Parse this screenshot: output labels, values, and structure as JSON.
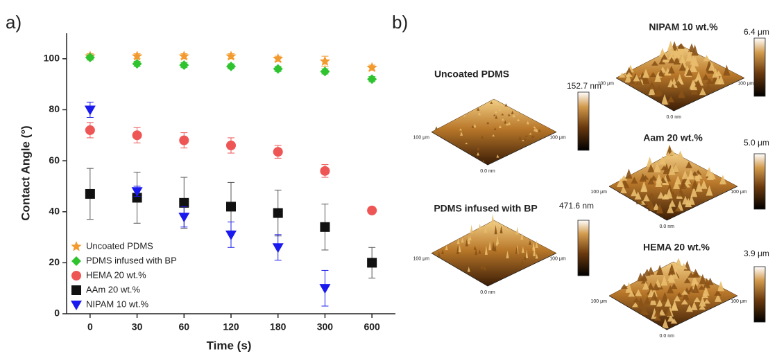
{
  "chart_data": {
    "type": "scatter",
    "panel_label": "a)",
    "x_label": "Time (s)",
    "y_label": "Contact Angle (°)",
    "categories": [
      "0",
      "30",
      "60",
      "120",
      "180",
      "300",
      "600"
    ],
    "ylim": [
      0,
      110
    ],
    "yticks": [
      0,
      20,
      40,
      60,
      80,
      100
    ],
    "legend": "lower left",
    "series": [
      {
        "name": "Uncoated PDMS",
        "color": "#f39a2e",
        "marker": "star",
        "values": [
          101,
          101,
          101,
          101,
          100,
          99,
          96.5
        ],
        "errors": [
          1,
          1,
          1,
          1,
          1,
          2,
          1
        ]
      },
      {
        "name": "PDMS infused with BP",
        "color": "#2fc42f",
        "marker": "diamond",
        "values": [
          100.5,
          98,
          97.5,
          97,
          96,
          95,
          92
        ],
        "errors": [
          1,
          1,
          1,
          1,
          1,
          1,
          1
        ]
      },
      {
        "name": "HEMA 20 wt.%",
        "color": "#ee5555",
        "marker": "circle",
        "values": [
          72,
          70,
          68,
          66,
          63.5,
          56,
          40.5
        ],
        "errors": [
          3,
          3,
          3,
          3,
          2.5,
          2.5,
          1
        ]
      },
      {
        "name": "AAm 20 wt.%",
        "color": "#111111",
        "marker": "square",
        "values": [
          47,
          45.5,
          43.5,
          42,
          39.5,
          34,
          20
        ],
        "errors": [
          10,
          10,
          10,
          9.5,
          9,
          9,
          6
        ]
      },
      {
        "name": "NIPAM 10 wt.%",
        "color": "#1a1aee",
        "marker": "triangle-down",
        "values": [
          80,
          48,
          38,
          31,
          26,
          10,
          null
        ],
        "errors": [
          3,
          2,
          4,
          5,
          5,
          7,
          null
        ]
      }
    ]
  },
  "afm_panel": {
    "label": "b)",
    "images": [
      {
        "title": "Uncoated PDMS",
        "scale": "152.7 nm",
        "axis_labels": [
          "100 μm",
          "100 μm",
          "0.0 nm"
        ]
      },
      {
        "title": "PDMS infused with BP",
        "scale": "471.6 nm",
        "axis_labels": [
          "100 μm",
          "100 μm",
          "0.0 nm"
        ]
      },
      {
        "title": "NIPAM 10 wt.%",
        "scale": "6.4 μm",
        "axis_labels": [
          "100 μm",
          "100 μm",
          "0.0 nm"
        ]
      },
      {
        "title": "Aam 20 wt.%",
        "scale": "5.0 μm",
        "axis_labels": [
          "100 μm",
          "100 μm",
          "0.0 nm"
        ]
      },
      {
        "title": "HEMA 20 wt.%",
        "scale": "3.9 μm",
        "axis_labels": [
          "100 μm",
          "100 μm",
          "0.0 nm"
        ]
      }
    ]
  }
}
